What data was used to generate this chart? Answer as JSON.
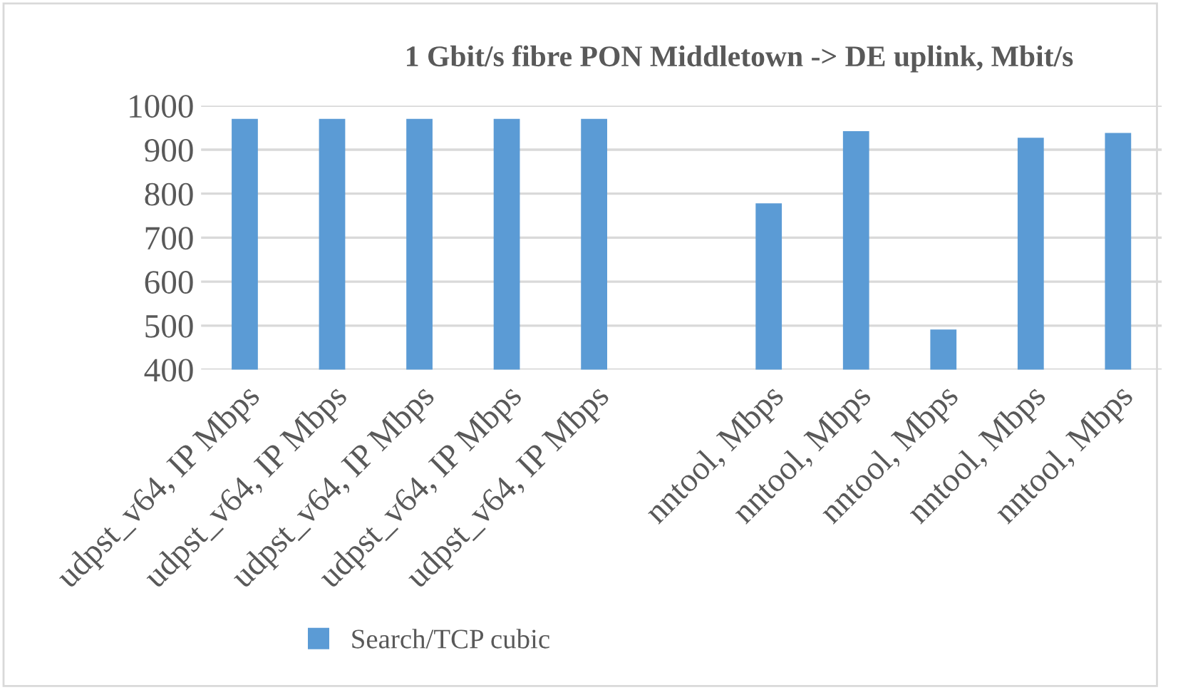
{
  "chart_data": {
    "type": "bar",
    "title": "1 Gbit/s fibre PON Middletown -> DE uplink, Mbit/s",
    "categories": [
      "udpst_v64, IP Mbps",
      "udpst_v64, IP Mbps",
      "udpst_v64, IP Mbps",
      "udpst_v64, IP Mbps",
      "udpst_v64, IP Mbps",
      null,
      "nntool, Mbps",
      "nntool, Mbps",
      "nntool, Mbps",
      "nntool, Mbps",
      "nntool, Mbps"
    ],
    "series": [
      {
        "name": "Search/TCP cubic",
        "color": "#5b9bd5",
        "values": [
          970,
          970,
          970,
          970,
          970,
          null,
          778,
          942,
          491,
          927,
          938
        ]
      }
    ],
    "ylim": [
      400,
      1000
    ],
    "yticks": [
      400,
      500,
      600,
      700,
      800,
      900,
      1000
    ],
    "grid": "y",
    "legend": "bottom"
  }
}
